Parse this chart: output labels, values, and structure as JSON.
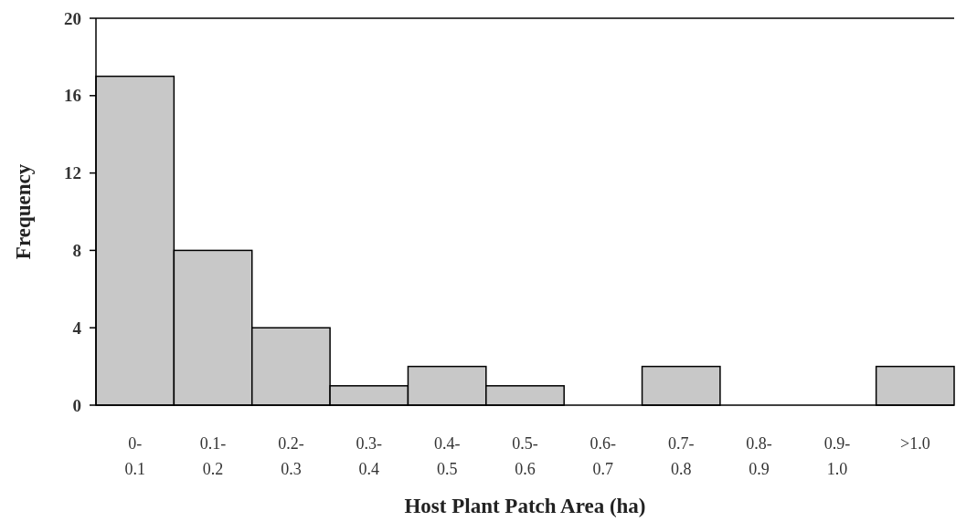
{
  "chart_data": {
    "type": "bar",
    "xlabel": "Host Plant Patch Area (ha)",
    "ylabel": "Frequency",
    "categories": [
      "0-0.1",
      "0.1-0.2",
      "0.2-0.3",
      "0.3-0.4",
      "0.4-0.5",
      "0.5-0.6",
      "0.6-0.7",
      "0.7-0.8",
      "0.8-0.9",
      "0.9-1.0",
      ">1.0"
    ],
    "values": [
      17,
      8,
      4,
      1,
      2,
      1,
      0,
      2,
      0,
      0,
      2
    ],
    "color": "#c8c8c8",
    "ylim": [
      0,
      20
    ],
    "yticks": [
      0,
      4,
      8,
      12,
      16,
      20
    ],
    "grid": false
  }
}
